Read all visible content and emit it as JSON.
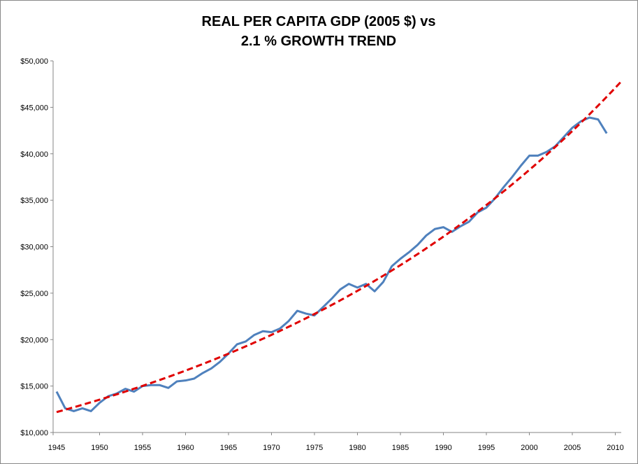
{
  "chart_data": {
    "type": "line",
    "title": [
      "REAL PER CAPITA GDP (2005 $) vs",
      "2.1 % GROWTH TREND"
    ],
    "xlabel": "",
    "ylabel": "",
    "xlim": [
      1945,
      2010
    ],
    "ylim": [
      10000,
      50000
    ],
    "x_ticks": [
      "1945",
      "1950",
      "1955",
      "1960",
      "1965",
      "1970",
      "1975",
      "1980",
      "1985",
      "1990",
      "1995",
      "2000",
      "2005",
      "2010"
    ],
    "y_ticks": [
      "$10,000",
      "$15,000",
      "$20,000",
      "$25,000",
      "$30,000",
      "$35,000",
      "$40,000",
      "$45,000",
      "$50,000"
    ],
    "grid": false,
    "legend": "none",
    "series": [
      {
        "color": "#4F81BD",
        "style": "solid",
        "x": [
          1945,
          1946,
          1947,
          1948,
          1949,
          1950,
          1951,
          1952,
          1953,
          1954,
          1955,
          1956,
          1957,
          1958,
          1959,
          1960,
          1961,
          1962,
          1963,
          1964,
          1965,
          1966,
          1967,
          1968,
          1969,
          1970,
          1971,
          1972,
          1973,
          1974,
          1975,
          1976,
          1977,
          1978,
          1979,
          1980,
          1981,
          1982,
          1983,
          1984,
          1985,
          1986,
          1987,
          1988,
          1989,
          1990,
          1991,
          1992,
          1993,
          1994,
          1995,
          1996,
          1997,
          1998,
          1999,
          2000,
          2001,
          2002,
          2003,
          2004,
          2005,
          2006,
          2007,
          2008,
          2009
        ],
        "values": [
          14400,
          12600,
          12300,
          12600,
          12300,
          13200,
          13900,
          14200,
          14700,
          14400,
          15000,
          15100,
          15100,
          14800,
          15500,
          15600,
          15800,
          16400,
          16900,
          17600,
          18500,
          19500,
          19800,
          20500,
          20900,
          20800,
          21200,
          22000,
          23100,
          22800,
          22600,
          23500,
          24400,
          25400,
          26000,
          25600,
          26000,
          25200,
          26200,
          27900,
          28700,
          29400,
          30200,
          31200,
          31900,
          32100,
          31600,
          32200,
          32700,
          33700,
          34200,
          35200,
          36400,
          37500,
          38700,
          39800,
          39800,
          40200,
          40800,
          41800,
          42800,
          43500,
          43900,
          43700,
          42200
        ]
      },
      {
        "color": "#E00000",
        "style": "dashed",
        "trend": {
          "start_year": 1945,
          "end_year": 2010.6,
          "start_value": 12200,
          "growth_rate_pct": 2.1
        }
      }
    ]
  }
}
